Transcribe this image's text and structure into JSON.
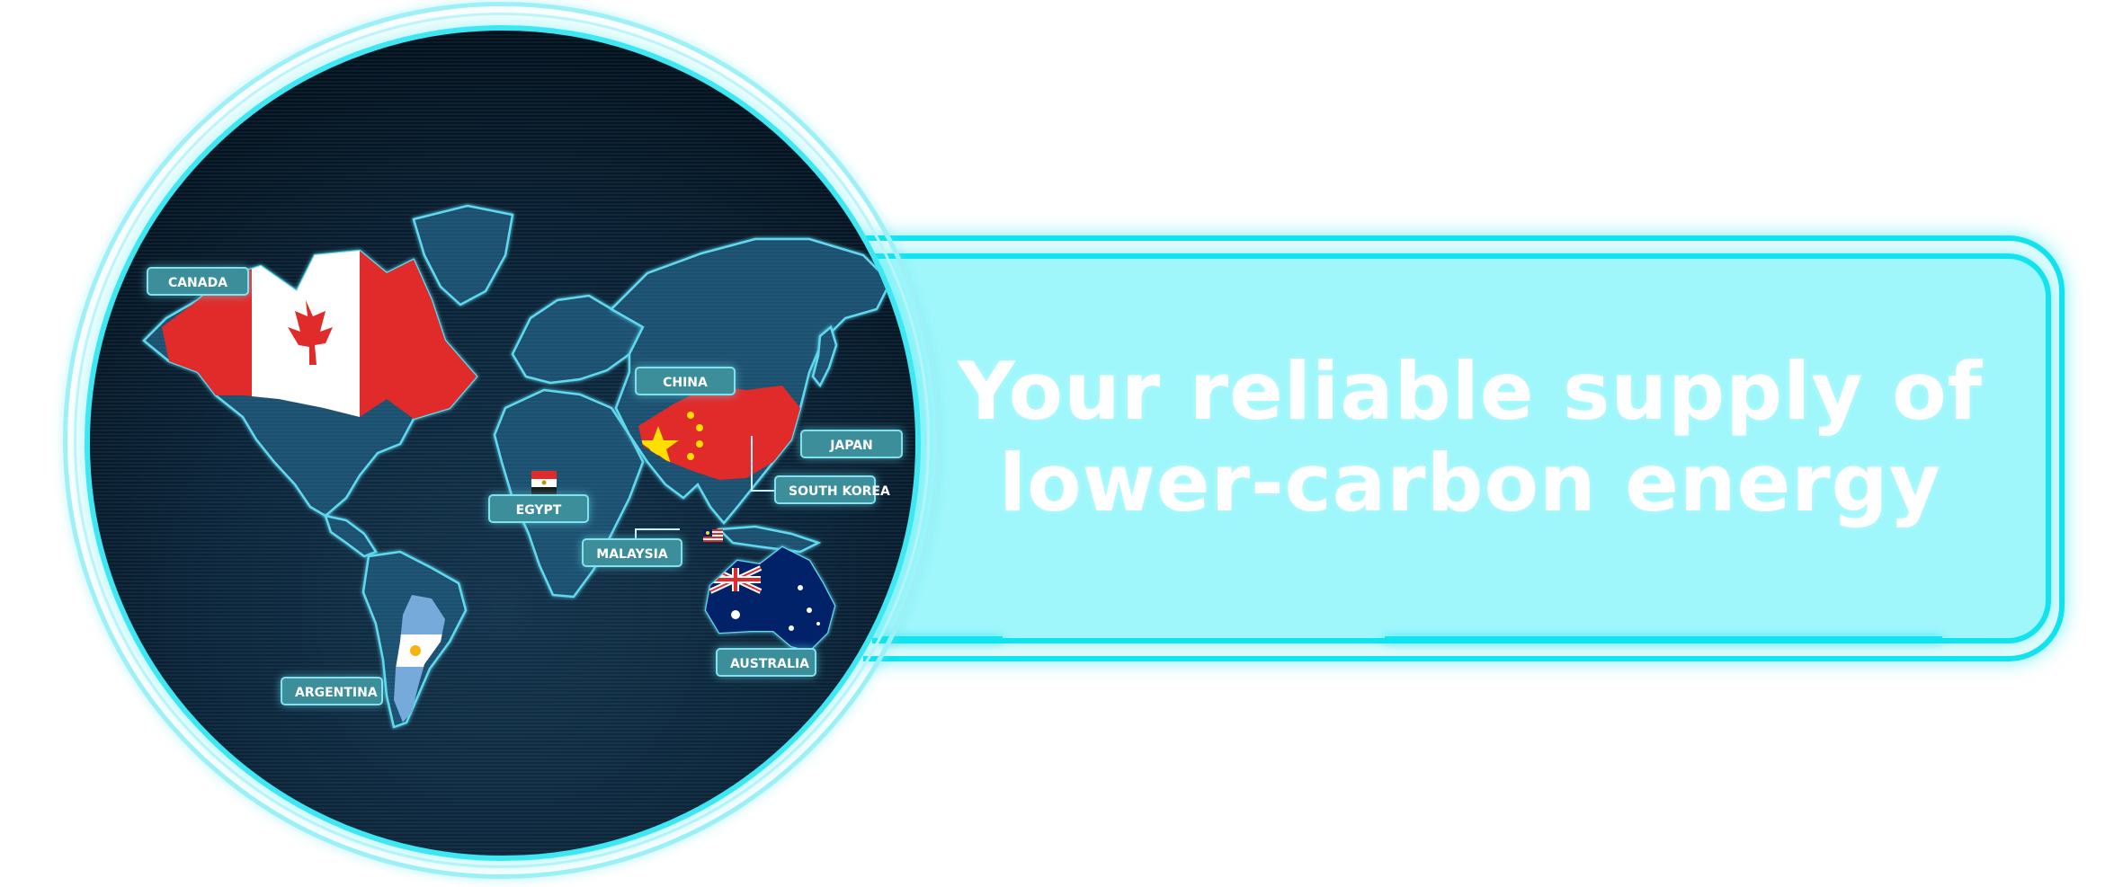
{
  "headline": {
    "line1": "Your reliable supply of",
    "line2": "lower-carbon energy"
  },
  "map": {
    "labels": {
      "canada": "CANADA",
      "china": "CHINA",
      "japan": "JAPAN",
      "south_korea": "SOUTH KOREA",
      "egypt": "EGYPT",
      "malaysia": "MALAYSIA",
      "australia": "AUSTRALIA",
      "argentina": "ARGENTINA"
    }
  },
  "colors": {
    "accent_cyan": "#12e3ef",
    "banner_fill": "#9ff7fb",
    "map_background": "#0c2236",
    "label_fill": "#3c8e9b",
    "flag_red": "#e12b2b",
    "flag_yellow": "#ffde00",
    "flag_navy": "#012169",
    "flag_sky_blue": "#75aadb"
  },
  "flags": [
    "canada-flag",
    "china-flag",
    "egypt-flag",
    "malaysia-flag",
    "australia-flag",
    "argentina-flag"
  ]
}
